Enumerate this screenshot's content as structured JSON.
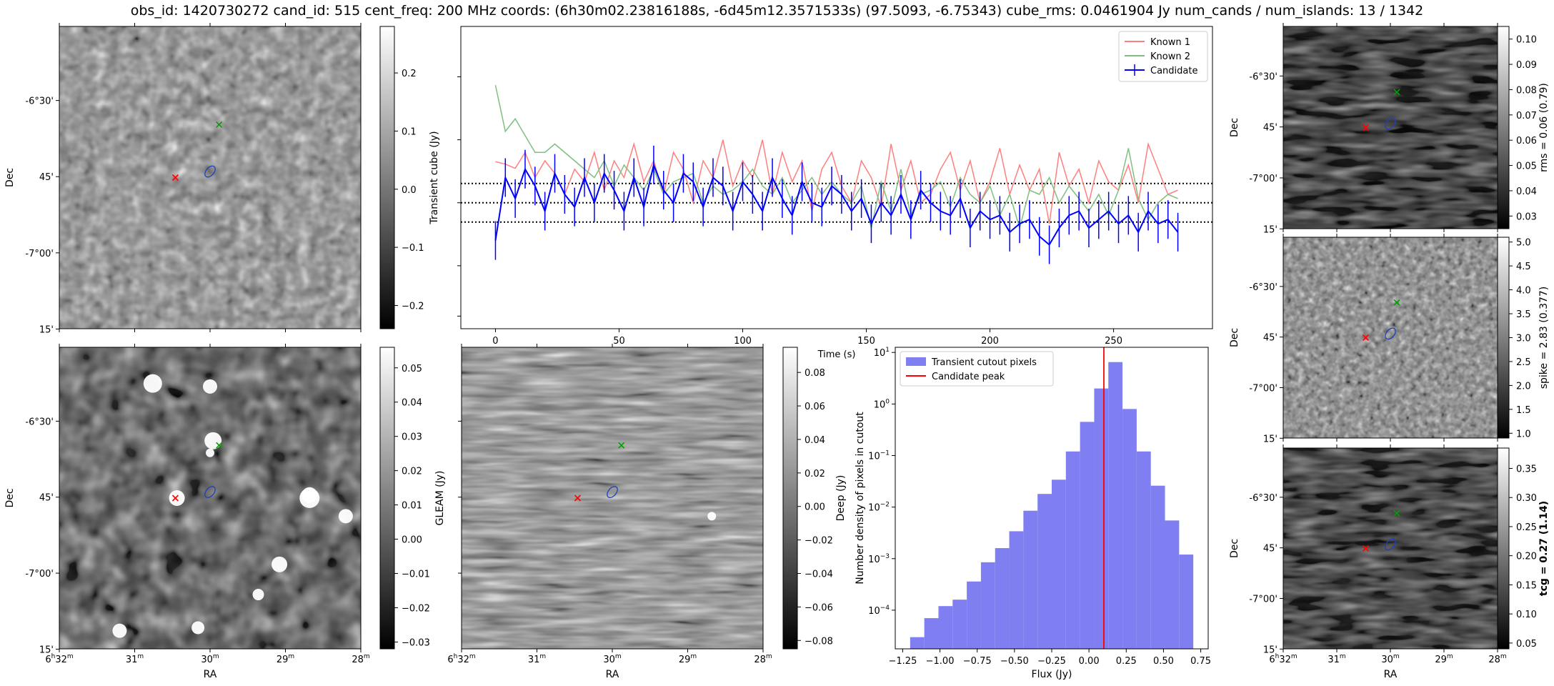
{
  "title": "obs_id: 1420730272 cand_id: 515 cent_freq: 200 MHz coords: (6h30m02.23816188s, -6d45m12.3571533s) (97.5093, -6.75343) cube_rms: 0.0461904 Jy num_cands / num_islands: 13 / 1342",
  "sky_axes": {
    "ra_ticks": [
      "6h32m",
      "31m",
      "30m",
      "29m",
      "28m"
    ],
    "dec_ticks": [
      "-6°30'",
      "45'",
      "-7°00'",
      "15'"
    ],
    "xlabel": "RA",
    "ylabel": "Dec"
  },
  "panels": {
    "transient": {
      "colorbar_label": "Transient cube (Jy)",
      "colorbar_ticks": [
        "0.2",
        "0.1",
        "0.0",
        "−0.1",
        "−0.2"
      ],
      "colorbar_range": [
        -0.24,
        0.28
      ]
    },
    "gleam": {
      "colorbar_label": "GLEAM (Jy)",
      "colorbar_ticks": [
        "0.05",
        "0.04",
        "0.03",
        "0.02",
        "0.01",
        "0.00",
        "−0.01",
        "−0.02",
        "−0.03"
      ],
      "colorbar_range": [
        -0.032,
        0.056
      ]
    },
    "deep": {
      "colorbar_label": "Deep (Jy)",
      "colorbar_ticks": [
        "0.08",
        "0.06",
        "0.04",
        "0.02",
        "0.00",
        "−0.02",
        "−0.04",
        "−0.06",
        "−0.08"
      ],
      "colorbar_range": [
        -0.085,
        0.095
      ]
    },
    "rms": {
      "colorbar_label": "rms = 0.06 (0.79)",
      "colorbar_ticks": [
        "0.10",
        "0.09",
        "0.08",
        "0.07",
        "0.06",
        "0.05",
        "0.04",
        "0.03"
      ],
      "colorbar_range": [
        0.025,
        0.105
      ]
    },
    "spike": {
      "colorbar_label": "spike = 2.83 (0.377)",
      "colorbar_ticks": [
        "5.0",
        "4.5",
        "4.0",
        "3.5",
        "3.0",
        "2.5",
        "2.0",
        "1.5",
        "1.0"
      ],
      "colorbar_range": [
        0.9,
        5.1
      ]
    },
    "tcg": {
      "colorbar_label": "tcg = 0.27 (1.14)",
      "colorbar_ticks": [
        "0.35",
        "0.30",
        "0.25",
        "0.20",
        "0.15",
        "0.10",
        "0.05"
      ],
      "colorbar_range": [
        0.04,
        0.385
      ]
    }
  },
  "chart_data": [
    {
      "type": "line",
      "title": "",
      "xlabel": "Time (s)",
      "ylabel": "Transient cube (Jy)",
      "xlim": [
        -14,
        290
      ],
      "ylim": [
        -0.3,
        0.42
      ],
      "xticks": [
        "0",
        "50",
        "100",
        "150",
        "200",
        "250"
      ],
      "legend_position": "top-right",
      "hlines": [
        0.046,
        0.0,
        -0.046
      ],
      "x": [
        0,
        4,
        8,
        12,
        16,
        20,
        24,
        28,
        32,
        36,
        40,
        44,
        48,
        52,
        56,
        60,
        64,
        68,
        72,
        76,
        80,
        84,
        88,
        92,
        96,
        100,
        104,
        108,
        112,
        116,
        120,
        124,
        128,
        132,
        136,
        140,
        144,
        148,
        152,
        156,
        160,
        164,
        168,
        172,
        176,
        180,
        184,
        188,
        192,
        196,
        200,
        204,
        208,
        212,
        216,
        220,
        224,
        228,
        232,
        236,
        240,
        244,
        248,
        252,
        256,
        260,
        264,
        268,
        272,
        276
      ],
      "series": [
        {
          "name": "Known 1",
          "color": "#ff7f7f",
          "values": [
            0.098,
            0.092,
            0.082,
            0.12,
            0.06,
            0.1,
            0.07,
            0.02,
            0.08,
            0.05,
            0.12,
            0.03,
            0.1,
            0.06,
            0.14,
            0.05,
            0.1,
            0.02,
            0.12,
            0.08,
            0.0,
            0.1,
            0.06,
            0.15,
            0.04,
            0.1,
            0.06,
            0.15,
            0.02,
            0.12,
            0.05,
            0.1,
            -0.02,
            0.08,
            0.12,
            0.04,
            0.0,
            0.1,
            0.06,
            -0.01,
            0.14,
            0.03,
            0.1,
            0.0,
            0.02,
            0.08,
            0.12,
            0.03,
            0.1,
            0.0,
            0.05,
            0.13,
            0.02,
            0.09,
            0.03,
            0.08,
            -0.05,
            0.12,
            0.04,
            0.08,
            0.0,
            0.1,
            0.05,
            0.03,
            0.09,
            0.0,
            0.14,
            0.08,
            0.02,
            0.03
          ]
        },
        {
          "name": "Known 2",
          "color": "#7fbf7f",
          "values": [
            0.28,
            0.17,
            0.2,
            0.16,
            0.12,
            0.12,
            0.14,
            0.12,
            0.1,
            0.08,
            0.06,
            0.1,
            0.04,
            0.09,
            0.06,
            0.03,
            0.08,
            0.02,
            0.05,
            0.06,
            0.07,
            0.0,
            0.04,
            0.02,
            0.03,
            0.05,
            0.08,
            0.04,
            0.02,
            0.06,
            0.0,
            0.03,
            0.06,
            0.02,
            0.05,
            0.02,
            0.0,
            0.04,
            -0.06,
            0.05,
            -0.02,
            0.08,
            -0.03,
            0.02,
            0.03,
            0.05,
            -0.01,
            0.06,
            0.02,
            0.0,
            0.04,
            -0.03,
            0.02,
            -0.06,
            0.03,
            0.02,
            0.06,
            0.0,
            0.04,
            0.01,
            -0.02,
            0.02,
            -0.03,
            0.03,
            0.13,
            0.01,
            -0.04,
            0.0,
            0.02,
            0.01
          ]
        },
        {
          "name": "Candidate",
          "color": "#0000ff",
          "values": [
            -0.09,
            0.06,
            0.01,
            0.08,
            0.04,
            -0.02,
            0.07,
            0.02,
            -0.01,
            0.06,
            0.0,
            0.07,
            0.03,
            -0.02,
            0.06,
            -0.01,
            0.09,
            0.03,
            0.0,
            0.07,
            0.05,
            -0.01,
            0.06,
            0.04,
            -0.02,
            0.05,
            0.02,
            -0.02,
            0.06,
            0.01,
            -0.03,
            0.05,
            0.0,
            -0.01,
            0.04,
            0.02,
            -0.02,
            0.01,
            -0.05,
            0.0,
            -0.03,
            0.02,
            -0.04,
            0.03,
            0.0,
            -0.02,
            -0.03,
            0.01,
            -0.06,
            -0.02,
            -0.04,
            -0.03,
            -0.07,
            -0.05,
            -0.04,
            -0.08,
            -0.1,
            -0.06,
            -0.03,
            -0.02,
            -0.06,
            -0.04,
            -0.02,
            -0.05,
            -0.03,
            -0.07,
            -0.02,
            -0.05,
            -0.04,
            -0.07
          ],
          "error": 0.046
        }
      ]
    },
    {
      "type": "bar",
      "title": "",
      "xlabel": "Flux (Jy)",
      "ylabel": "Number density of pixels in cutout",
      "yscale": "log",
      "xlim": [
        -1.3,
        0.8
      ],
      "ylim_exponent": [
        -4.75,
        1.1
      ],
      "xticks": [
        "−1.25",
        "−1.00",
        "−0.75",
        "−0.50",
        "−0.25",
        "0.00",
        "0.25",
        "0.50",
        "0.75"
      ],
      "yticks": [
        "10^1",
        "10^0",
        "10^-1",
        "10^-2",
        "10^-3",
        "10^-4"
      ],
      "legend_position": "top-left",
      "bin_edges": [
        -1.2,
        -1.105,
        -1.01,
        -0.915,
        -0.82,
        -0.725,
        -0.63,
        -0.535,
        -0.44,
        -0.345,
        -0.25,
        -0.155,
        -0.06,
        0.035,
        0.13,
        0.225,
        0.32,
        0.415,
        0.51,
        0.605,
        0.7
      ],
      "values": [
        3e-05,
        7e-05,
        0.00012,
        0.00016,
        0.00036,
        0.00085,
        0.0016,
        0.0034,
        0.0085,
        0.018,
        0.034,
        0.12,
        0.45,
        2.0,
        6.5,
        0.8,
        0.12,
        0.026,
        0.0055,
        0.0012
      ],
      "series": [
        {
          "name": "Transient cutout pixels",
          "color": "#7f7ff2"
        },
        {
          "name": "Candidate peak",
          "color": "#ff0000",
          "x": 0.1
        }
      ]
    }
  ]
}
